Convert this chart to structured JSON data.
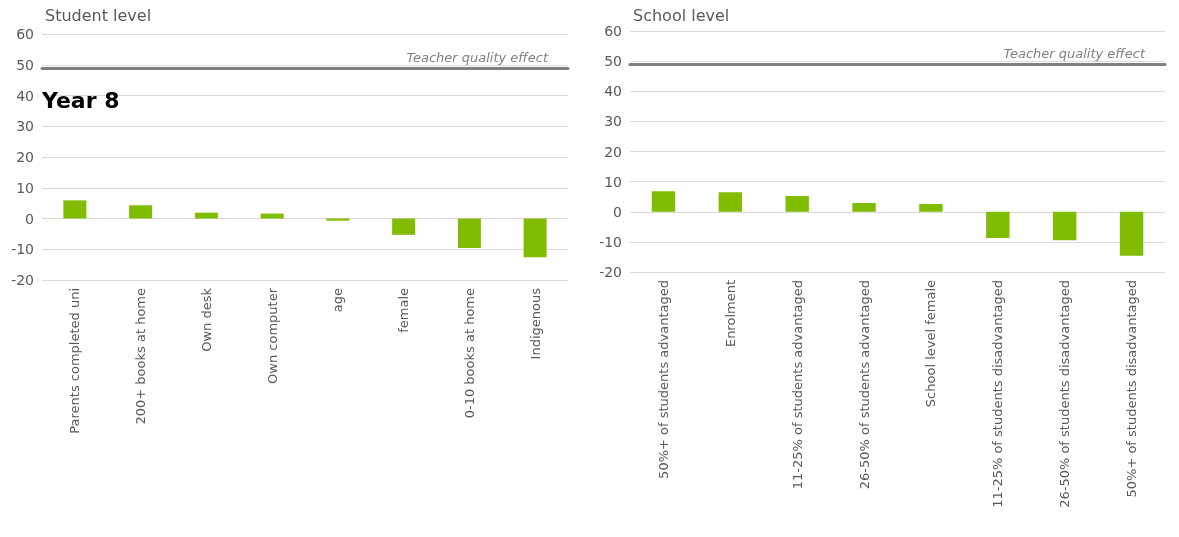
{
  "chart_data": [
    {
      "type": "bar",
      "title": "Student level",
      "categories": [
        "Parents completed uni",
        "200+ books at home",
        "Own desk",
        "Own computer",
        "age",
        "female",
        "0-10 books at home",
        "Indigenous"
      ],
      "values": [
        5.9,
        4.3,
        1.9,
        1.6,
        -0.7,
        -5.3,
        -9.6,
        -12.6
      ],
      "color": "#80bc00",
      "ylim": [
        -20,
        60
      ],
      "yticks": [
        -20,
        -10,
        0,
        10,
        20,
        30,
        40,
        50,
        60
      ],
      "grid": "y",
      "ref_lines": [
        {
          "axis": "y",
          "value": 49,
          "label": "Teacher quality effect",
          "color": "#7f7f7f"
        }
      ],
      "annotations": [
        "Year 8"
      ]
    },
    {
      "type": "bar",
      "title": "School level",
      "categories": [
        "50%+ of students advantaged",
        "Enrolment",
        "11-25% of students advantaged",
        "26-50% of students advantaged",
        "School level female",
        "11-25% of students disadvantaged",
        "26-50% of students disadvantaged",
        "50%+ of students disadvantaged"
      ],
      "values": [
        6.8,
        6.5,
        5.2,
        2.9,
        2.6,
        -8.7,
        -9.5,
        -14.6
      ],
      "color": "#80bc00",
      "ylim": [
        -20,
        60
      ],
      "yticks": [
        -20,
        -10,
        0,
        10,
        20,
        30,
        40,
        50,
        60
      ],
      "grid": "y",
      "ref_lines": [
        {
          "axis": "y",
          "value": 49,
          "label": "Teacher quality effect",
          "color": "#7f7f7f"
        }
      ]
    }
  ]
}
